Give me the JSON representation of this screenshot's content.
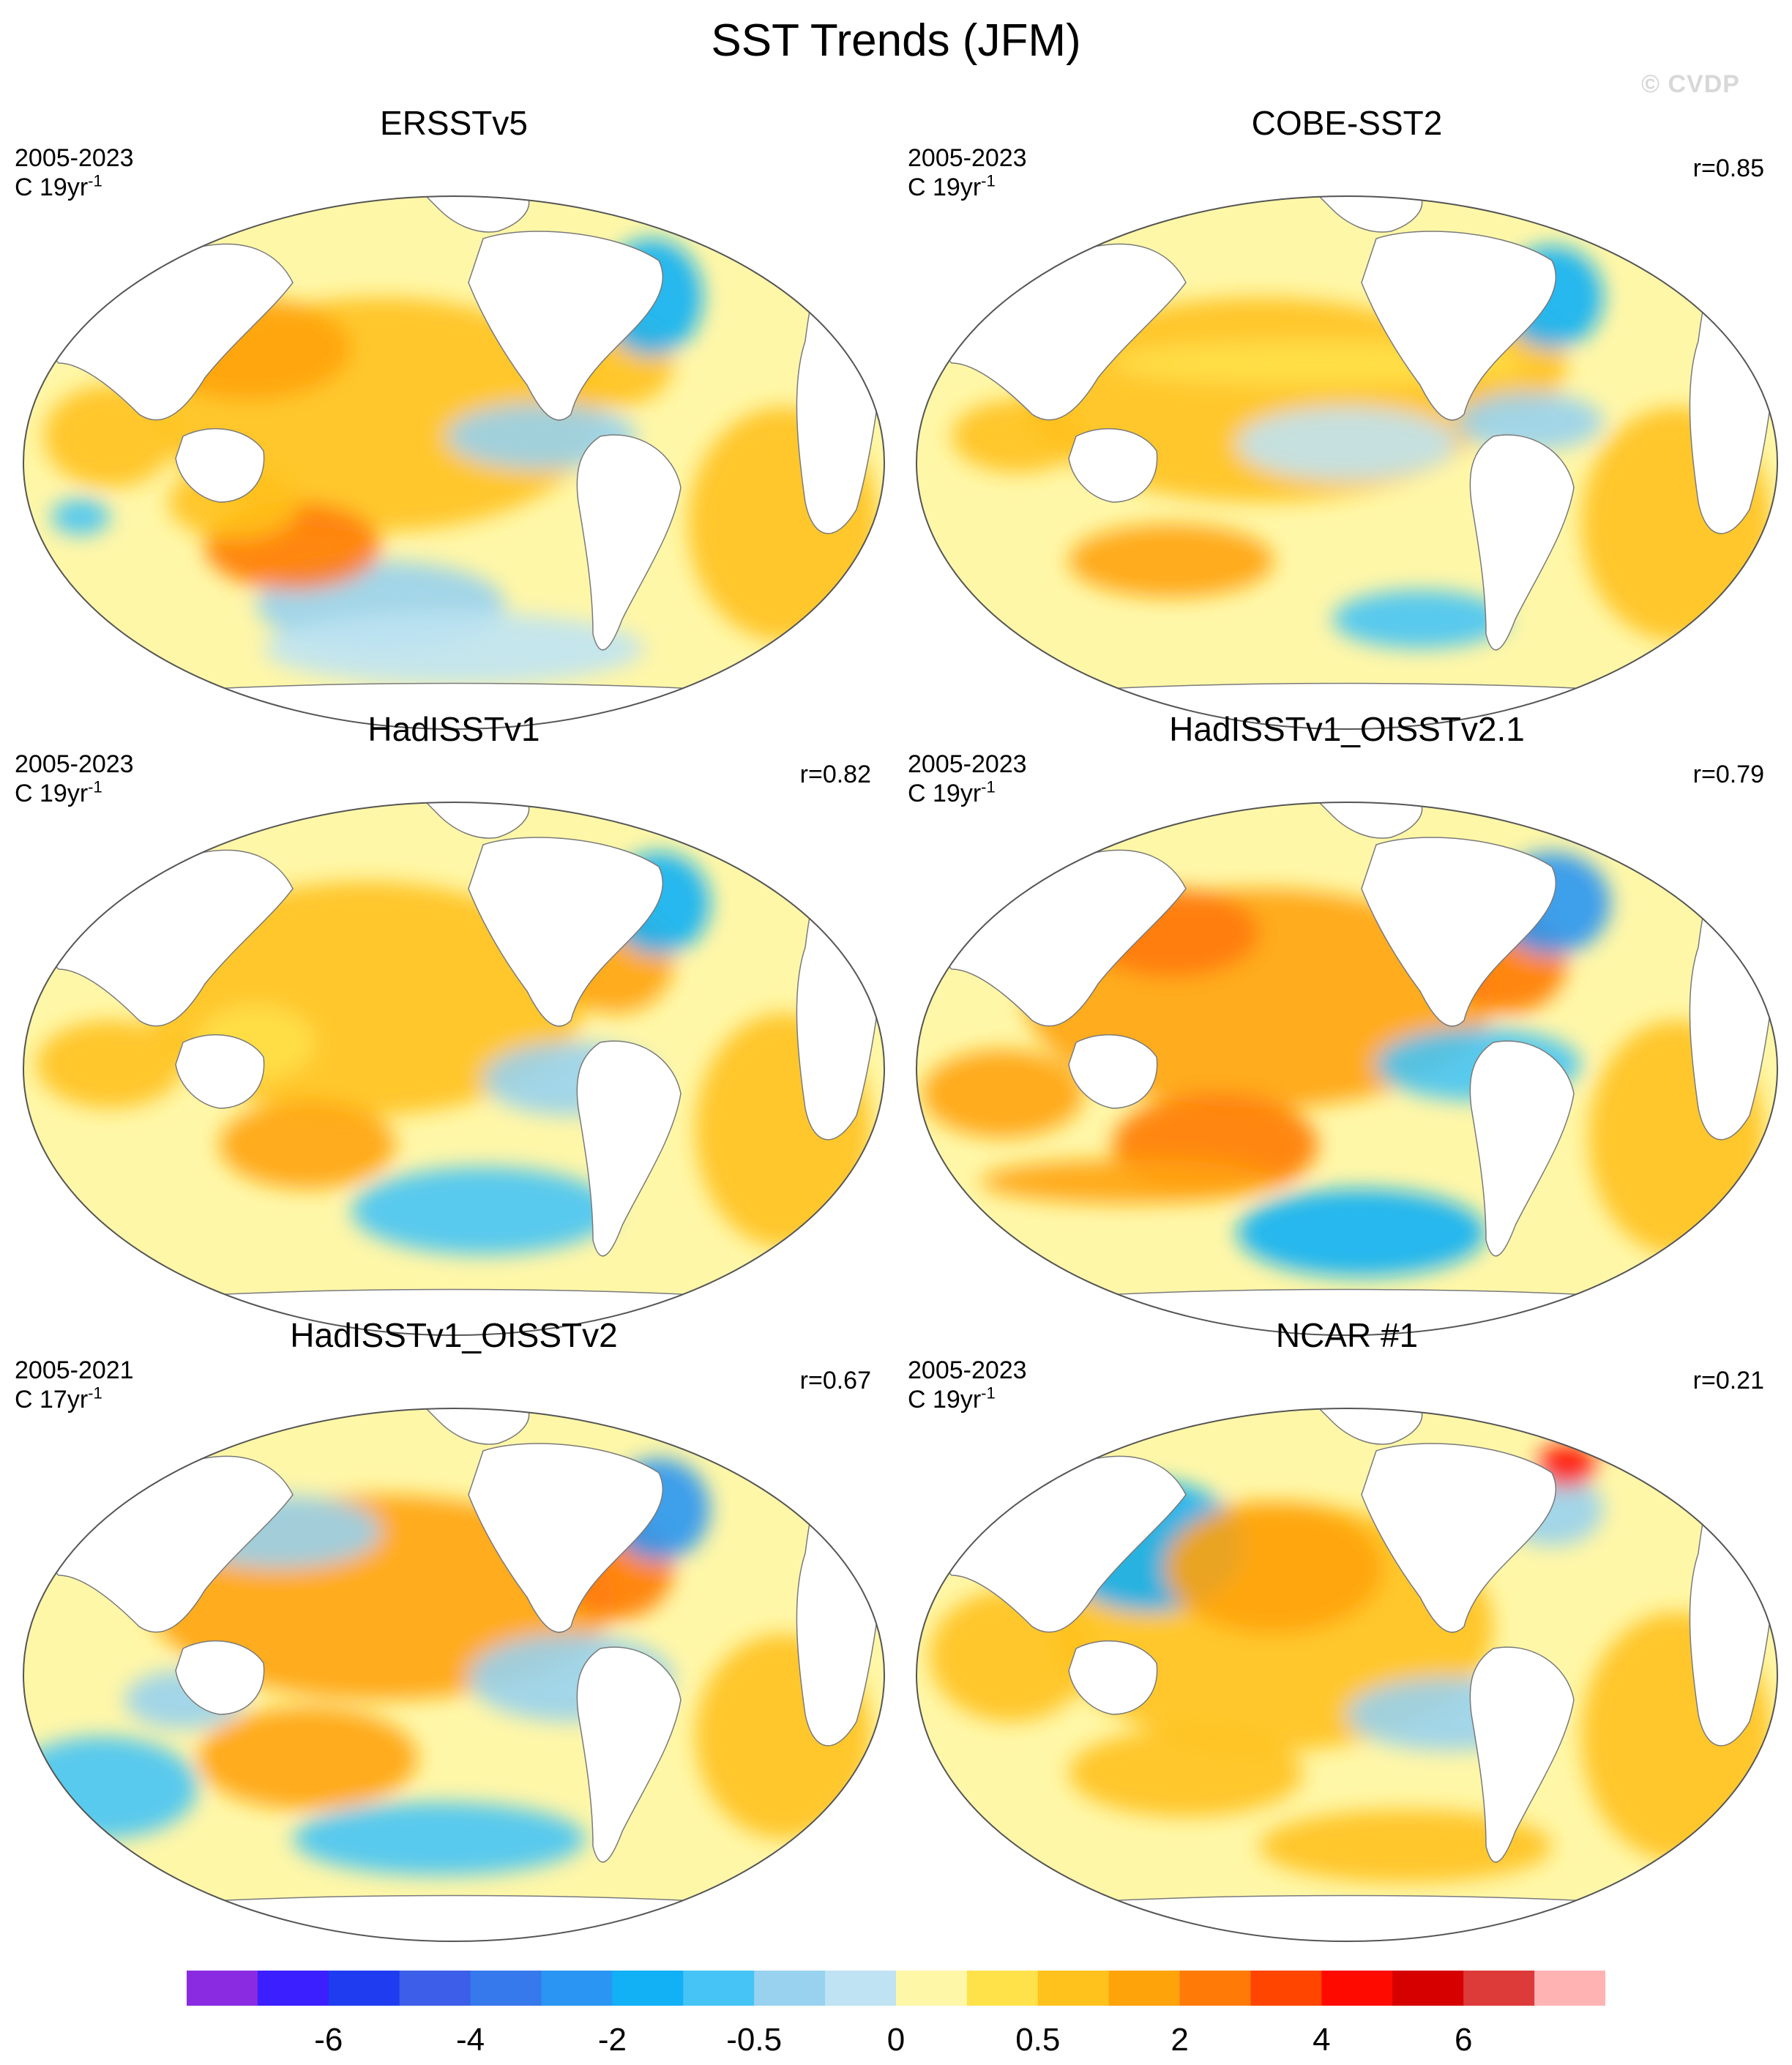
{
  "title": "SST Trends (JFM)",
  "watermark": "© CVDP",
  "colors": {
    "ocean_neutral": "#fff7a8",
    "land": "#ffffff",
    "coast": "#7a7a7a",
    "palette": [
      "#8a2be2",
      "#3b1fff",
      "#1f3cf0",
      "#3d5ee8",
      "#3579ec",
      "#2a95f2",
      "#12b0f5",
      "#45c4f5",
      "#98d2ee",
      "#bfe3f3",
      "#fff7a8",
      "#ffe14a",
      "#ffc11c",
      "#ffa30b",
      "#ff7a07",
      "#ff4500",
      "#ff0a00",
      "#d60000",
      "#dd3a3a",
      "#ffb3b3"
    ]
  },
  "panels": [
    {
      "title": "ERSSTv5",
      "period": "2005-2023",
      "units": "C 19yr",
      "units_sup": "-1",
      "corr": ""
    },
    {
      "title": "COBE-SST2",
      "period": "2005-2023",
      "units": "C 19yr",
      "units_sup": "-1",
      "corr": "r=0.85"
    },
    {
      "title": "HadISSTv1",
      "period": "2005-2023",
      "units": "C 19yr",
      "units_sup": "-1",
      "corr": "r=0.82"
    },
    {
      "title": "HadISSTv1_OISSTv2.1",
      "period": "2005-2023",
      "units": "C 19yr",
      "units_sup": "-1",
      "corr": "r=0.79"
    },
    {
      "title": "HadISSTv1_OISSTv2",
      "period": "2005-2021",
      "units": "C 17yr",
      "units_sup": "-1",
      "corr": "r=0.67"
    },
    {
      "title": "NCAR #1",
      "period": "2005-2023",
      "units": "C 19yr",
      "units_sup": "-1",
      "corr": "r=0.21"
    }
  ],
  "colorbar": {
    "labels": [
      {
        "text": "-6"
      },
      {
        "text": "-4"
      },
      {
        "text": "-2"
      },
      {
        "text": "-0.5"
      },
      {
        "text": "0"
      },
      {
        "text": "0.5"
      },
      {
        "text": "2"
      },
      {
        "text": "4"
      },
      {
        "text": "6"
      }
    ],
    "label_boundaries": [
      2,
      4,
      6,
      8,
      10,
      12,
      14,
      16,
      18
    ]
  }
}
